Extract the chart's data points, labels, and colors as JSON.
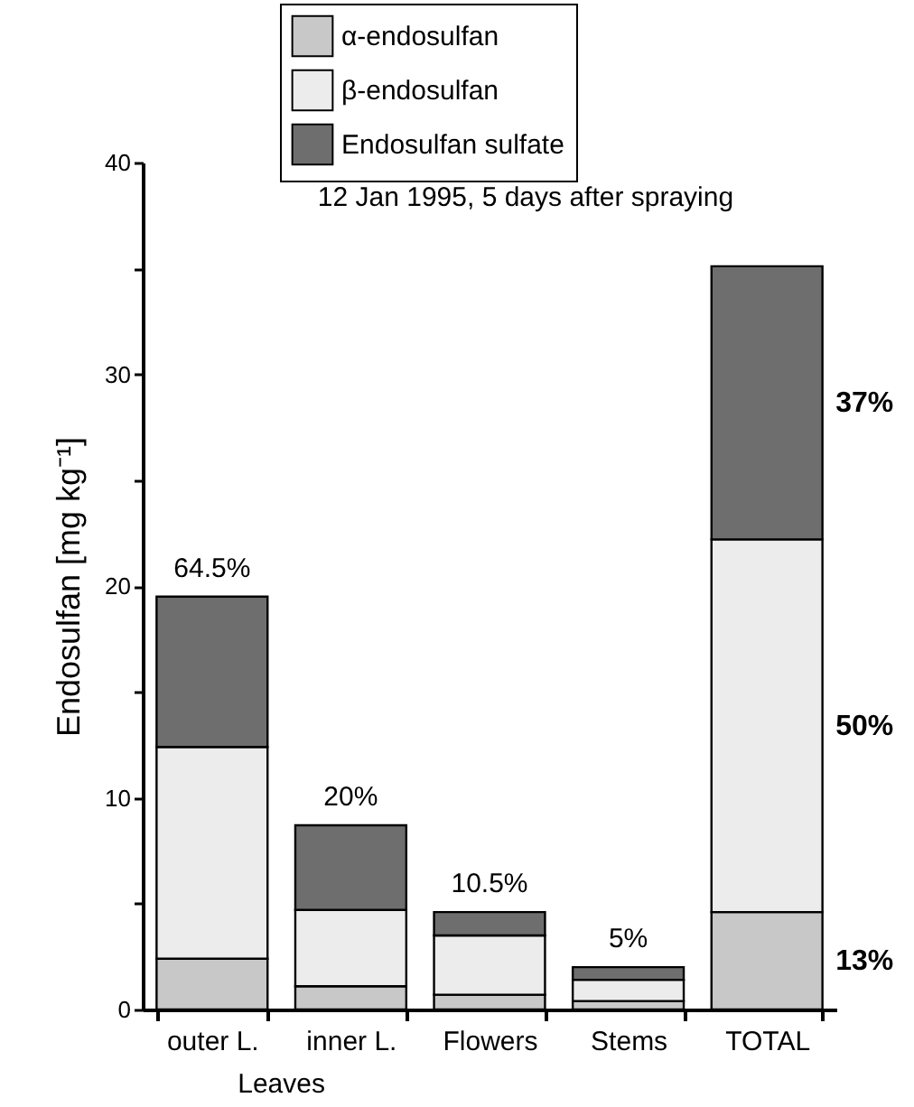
{
  "chart_data": {
    "type": "bar",
    "title": "12 Jan 1995, 5 days after spraying",
    "ylabel": "Endosulfan [mg kg⁻¹]",
    "categories": [
      "outer L.",
      "inner L.",
      "Flowers",
      "Stems",
      "TOTAL"
    ],
    "series": [
      {
        "name": "α-endosulfan",
        "color": "#c8c8c8",
        "values": [
          2.4,
          1.1,
          0.7,
          0.4,
          4.6
        ]
      },
      {
        "name": "β-endosulfan",
        "color": "#ececec",
        "values": [
          10.0,
          3.6,
          2.8,
          1.0,
          17.6
        ]
      },
      {
        "name": "Endosulfan sulfate",
        "color": "#6e6e6e",
        "values": [
          7.1,
          4.0,
          1.1,
          0.6,
          12.9
        ]
      }
    ],
    "stacked": true,
    "ylim": [
      0,
      40
    ],
    "yticks": [
      0,
      {
        "value": 5,
        "label": null
      },
      10,
      {
        "value": 15,
        "label": null
      },
      20,
      {
        "value": 25,
        "label": null
      },
      30,
      {
        "value": 35,
        "label": null
      },
      40
    ],
    "annotations": [
      {
        "text": "64.5%",
        "x": "outer L.",
        "y": 19.5
      },
      {
        "text": "20%",
        "x": "inner L.",
        "y": 8.7
      },
      {
        "text": "10.5%",
        "x": "Flowers",
        "y": 4.6
      },
      {
        "text": "5%",
        "x": "Stems",
        "y": 2.0
      },
      "37%",
      "50%",
      "13%",
      "Leaves"
    ],
    "grid": false,
    "legend": "top"
  }
}
